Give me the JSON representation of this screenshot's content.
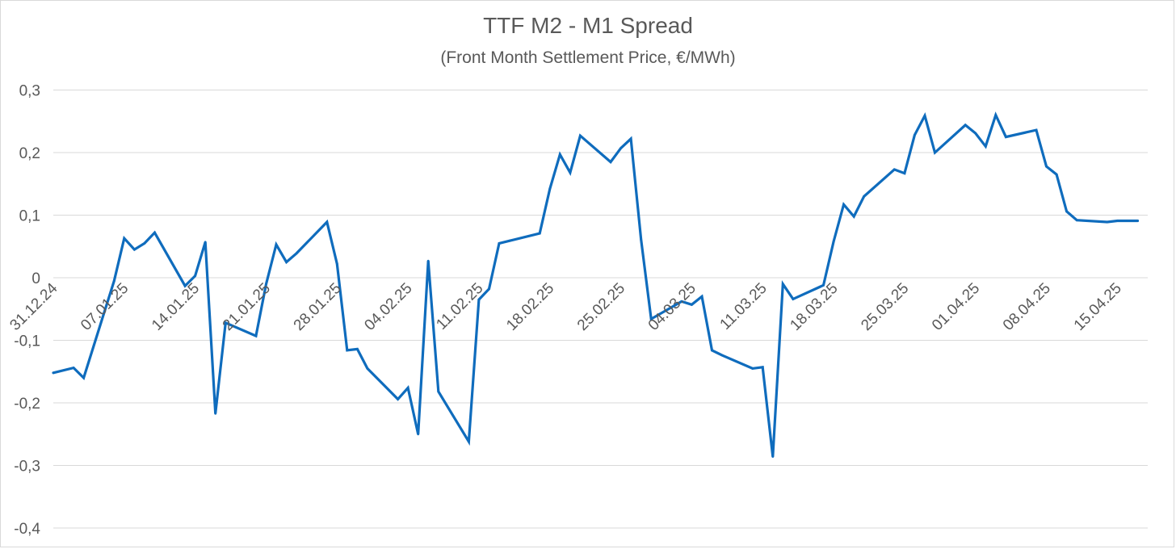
{
  "chart_data": {
    "type": "line",
    "title": "TTF M2 - M1 Spread",
    "subtitle": "(Front Month Settlement Price, €/MWh)",
    "xlabel": "",
    "ylabel": "",
    "ylim": [
      -0.4,
      0.3
    ],
    "yticks": [
      0.3,
      0.2,
      0.1,
      0,
      -0.1,
      -0.2,
      -0.3,
      -0.4
    ],
    "ytick_labels": [
      "0,3",
      "0,2",
      "0,1",
      "0",
      "-0,1",
      "-0,2",
      "-0,3",
      "-0,4"
    ],
    "xlim": [
      "31.12.24",
      "18.04.25"
    ],
    "xtick_labels": [
      "31.12.24",
      "07.01.25",
      "14.01.25",
      "21.01.25",
      "28.01.25",
      "04.02.25",
      "11.02.25",
      "18.02.25",
      "25.02.25",
      "04.03.25",
      "11.03.25",
      "18.03.25",
      "25.03.25",
      "01.04.25",
      "08.04.25",
      "15.04.25"
    ],
    "grid": true,
    "legend": "none",
    "colors": {
      "line": "#0f6cbd",
      "grid": "#d9d9d9",
      "text": "#595959"
    },
    "series": [
      {
        "x": [
          "31.12.24",
          "02.01.25",
          "03.01.25",
          "06.01.25",
          "07.01.25",
          "08.01.25",
          "09.01.25",
          "10.01.25",
          "13.01.25",
          "14.01.25",
          "15.01.25",
          "16.01.25",
          "17.01.25",
          "20.01.25",
          "21.01.25",
          "22.01.25",
          "23.01.25",
          "24.01.25",
          "27.01.25",
          "28.01.25",
          "29.01.25",
          "30.01.25",
          "31.01.25",
          "03.02.25",
          "04.02.25",
          "05.02.25",
          "06.02.25",
          "07.02.25",
          "10.02.25",
          "11.02.25",
          "12.02.25",
          "13.02.25",
          "14.02.25",
          "17.02.25",
          "18.02.25",
          "19.02.25",
          "20.02.25",
          "21.02.25",
          "24.02.25",
          "25.02.25",
          "26.02.25",
          "27.02.25",
          "28.02.25",
          "03.03.25",
          "04.03.25",
          "05.03.25",
          "06.03.25",
          "07.03.25",
          "10.03.25",
          "11.03.25",
          "12.03.25",
          "13.03.25",
          "14.03.25",
          "17.03.25",
          "18.03.25",
          "19.03.25",
          "20.03.25",
          "21.03.25",
          "24.03.25",
          "25.03.25",
          "26.03.25",
          "27.03.25",
          "28.03.25",
          "31.03.25",
          "01.04.25",
          "02.04.25",
          "03.04.25",
          "04.04.25",
          "07.04.25",
          "08.04.25",
          "09.04.25",
          "10.04.25",
          "11.04.25",
          "14.04.25",
          "15.04.25",
          "16.04.25",
          "17.04.25"
        ],
        "values": [
          -0.152,
          -0.144,
          -0.16,
          -0.005,
          0.063,
          0.045,
          0.055,
          0.072,
          -0.013,
          0.003,
          0.057,
          -0.217,
          -0.072,
          -0.093,
          -0.01,
          0.053,
          0.025,
          0.039,
          0.089,
          0.022,
          -0.116,
          -0.114,
          -0.145,
          -0.194,
          -0.176,
          -0.25,
          0.027,
          -0.182,
          -0.262,
          -0.035,
          -0.018,
          0.055,
          0.059,
          0.071,
          0.142,
          0.197,
          0.168,
          0.227,
          0.185,
          0.207,
          0.222,
          0.061,
          -0.066,
          -0.038,
          -0.043,
          -0.03,
          -0.116,
          -0.124,
          -0.145,
          -0.143,
          -0.286,
          -0.01,
          -0.034,
          -0.012,
          0.058,
          0.117,
          0.098,
          0.13,
          0.173,
          0.167,
          0.228,
          0.259,
          0.2,
          0.244,
          0.231,
          0.21,
          0.26,
          0.225,
          0.236,
          0.178,
          0.165,
          0.106,
          0.092,
          0.089,
          0.091,
          0.091,
          0.091
        ]
      }
    ]
  }
}
